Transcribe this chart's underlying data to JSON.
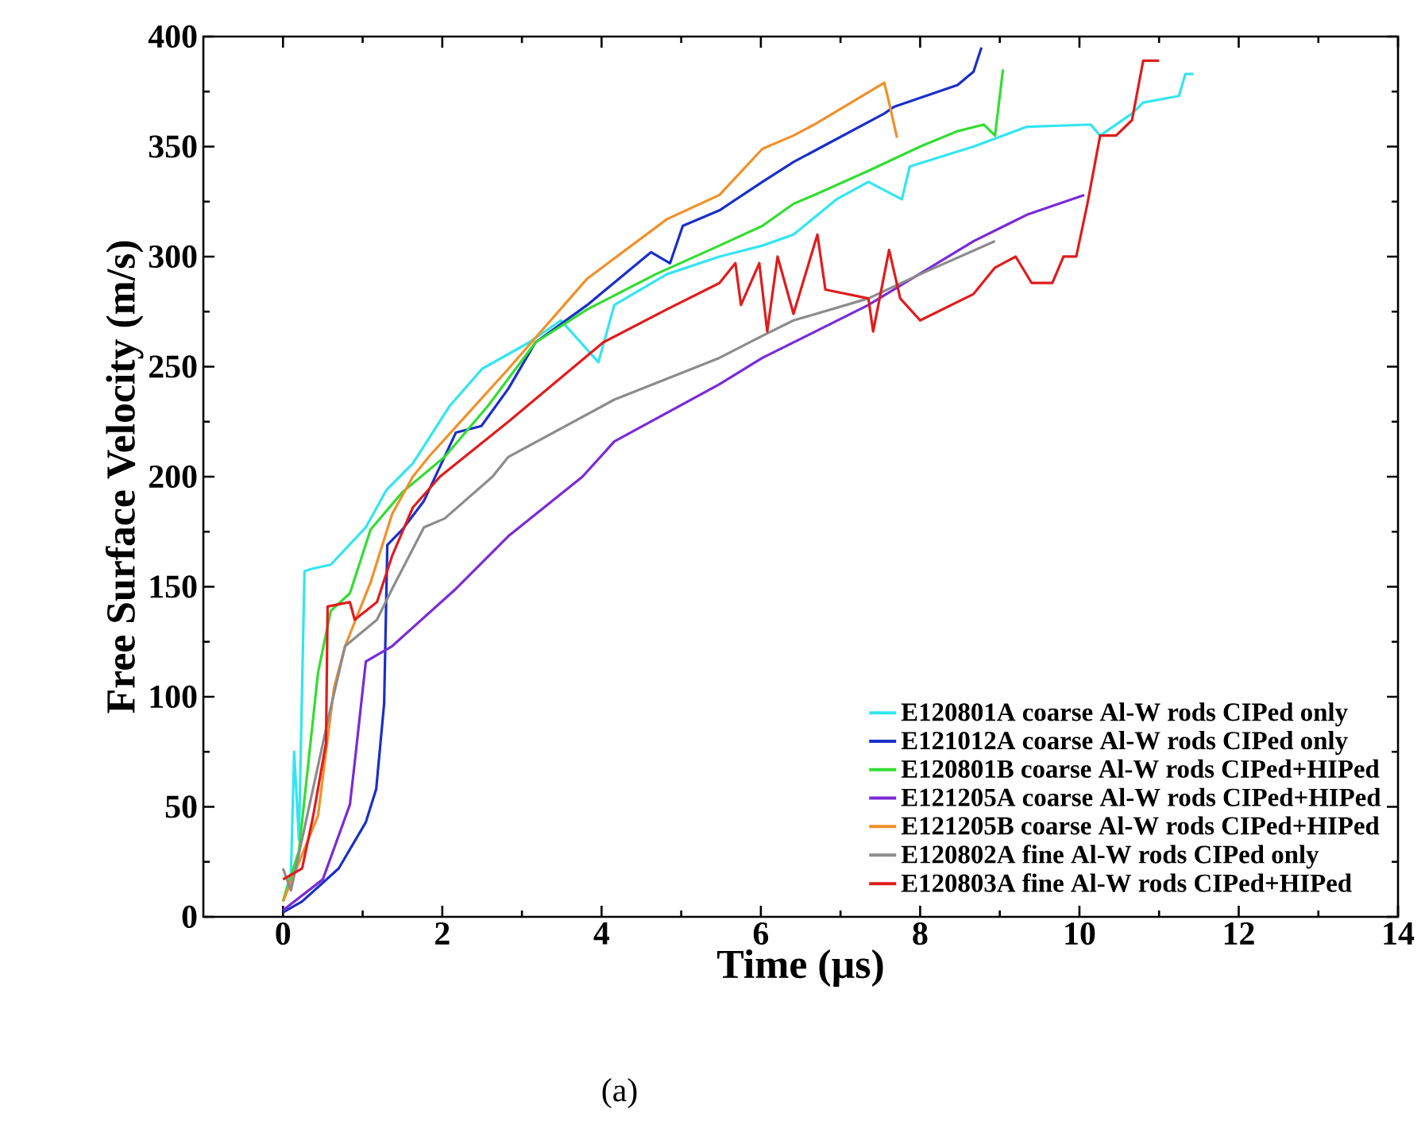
{
  "chart_data": {
    "type": "line",
    "xlabel": "Time (µs)",
    "ylabel": "Free Surface Velocity (m/s)",
    "xlim": [
      -1,
      14
    ],
    "ylim": [
      0,
      400
    ],
    "xticks": [
      0,
      2,
      4,
      6,
      8,
      10,
      12,
      14
    ],
    "yticks": [
      0,
      50,
      100,
      150,
      200,
      250,
      300,
      350,
      400
    ],
    "legend": "bottom right",
    "grid": false,
    "marker": "none",
    "line_style": "solid",
    "annotations": [
      "(a)"
    ],
    "series": [
      {
        "name": "E120801A coarse Al-W rods CIPed only",
        "color": "#33e5f0",
        "x": [
          0,
          0.1,
          0.14,
          0.2,
          0.27,
          0.35,
          0.6,
          1.04,
          1.3,
          1.63,
          2.09,
          2.5,
          3.09,
          3.49,
          3.96,
          4.16,
          4.82,
          5.48,
          6.02,
          6.41,
          6.95,
          7.35,
          7.77,
          7.87,
          8.67,
          9.34,
          10.14,
          10.26,
          10.66,
          10.8,
          11.25,
          11.33,
          11.43
        ],
        "values": [
          7,
          20,
          75,
          35,
          157,
          158,
          160,
          177,
          194,
          206,
          232,
          249,
          261,
          271,
          252,
          278,
          292,
          300,
          305,
          310,
          326,
          334,
          326,
          341,
          350,
          359,
          360,
          355,
          365,
          370,
          373,
          383,
          383
        ]
      },
      {
        "name": "E121012A coarse Al-W rods CIPed only",
        "color": "#1a2fc8",
        "x": [
          0,
          0.24,
          0.7,
          1.04,
          1.17,
          1.27,
          1.31,
          1.5,
          1.77,
          2.17,
          2.49,
          2.83,
          3.17,
          3.82,
          4.62,
          4.86,
          5.02,
          5.48,
          6.02,
          6.41,
          6.67,
          7.55,
          7.67,
          8.47,
          8.67,
          8.77
        ],
        "values": [
          2,
          7,
          22,
          43,
          58,
          97,
          169,
          176,
          189,
          220,
          223,
          240,
          261,
          278,
          302,
          297,
          314,
          321,
          334,
          343,
          348,
          365,
          368,
          378,
          384,
          395
        ]
      },
      {
        "name": "E120801B coarse Al-W rods CIPed+HIPed",
        "color": "#33dd33",
        "x": [
          0,
          0.2,
          0.44,
          0.6,
          0.84,
          1.1,
          1.5,
          2.03,
          2.57,
          3.17,
          3.82,
          4.68,
          5.48,
          6.02,
          6.41,
          6.67,
          7.35,
          8.0,
          8.47,
          8.8,
          8.94,
          9.04
        ],
        "values": [
          7,
          30,
          111,
          139,
          147,
          176,
          193,
          209,
          232,
          261,
          276,
          292,
          305,
          314,
          324,
          328,
          339,
          350,
          357,
          360,
          355,
          385
        ]
      },
      {
        "name": "E121205A coarse Al-W rods CIPed+HIPed",
        "color": "#7a2ad6",
        "x": [
          0,
          0.5,
          0.84,
          0.9,
          1.04,
          1.37,
          2.17,
          2.83,
          3.76,
          4.16,
          5.48,
          6.02,
          7.35,
          8.67,
          9.34,
          10.06
        ],
        "values": [
          3,
          17,
          51,
          70,
          116,
          123,
          149,
          173,
          200,
          216,
          242,
          254,
          278,
          307,
          319,
          328
        ]
      },
      {
        "name": "E121205B coarse Al-W rods CIPed+HIPed",
        "color": "#f0902a",
        "x": [
          0,
          0.44,
          0.64,
          0.78,
          1.1,
          1.37,
          1.63,
          1.83,
          2.83,
          3.82,
          4.82,
          5.48,
          6.02,
          6.41,
          6.67,
          7.55,
          7.61,
          7.71
        ],
        "values": [
          7,
          46,
          104,
          123,
          152,
          183,
          200,
          209,
          249,
          290,
          317,
          328,
          349,
          355,
          360,
          379,
          370,
          354
        ]
      },
      {
        "name": "E120802A fine Al-W rods CIPed only",
        "color": "#8c8c8c",
        "x": [
          0,
          0.1,
          0.58,
          0.78,
          1.18,
          1.37,
          1.77,
          2.03,
          2.63,
          2.83,
          4.16,
          5.48,
          6.02,
          6.41,
          7.35,
          8.0,
          8.94
        ],
        "values": [
          22,
          12,
          92,
          123,
          135,
          149,
          177,
          181,
          200,
          209,
          235,
          254,
          264,
          271,
          281,
          292,
          307
        ]
      },
      {
        "name": "E120803A fine Al-W rods CIPed+HIPed",
        "color": "#e01c1c",
        "x": [
          0,
          0.24,
          0.38,
          0.54,
          0.56,
          0.84,
          0.9,
          1.18,
          1.37,
          1.63,
          1.97,
          2.83,
          4.02,
          4.82,
          5.48,
          5.68,
          5.75,
          5.98,
          6.08,
          6.21,
          6.41,
          6.71,
          6.81,
          7.35,
          7.41,
          7.61,
          7.75,
          8.0,
          8.67,
          8.94,
          9.2,
          9.4,
          9.66,
          9.8,
          9.96,
          10.1,
          10.26,
          10.46,
          10.66,
          10.8,
          11.0
        ],
        "values": [
          17,
          22,
          46,
          79,
          141,
          143,
          135,
          143,
          164,
          186,
          200,
          225,
          261,
          276,
          288,
          297,
          278,
          297,
          266,
          300,
          274,
          310,
          285,
          281,
          266,
          303,
          281,
          271,
          283,
          295,
          300,
          288,
          288,
          300,
          300,
          324,
          355,
          355,
          362,
          389,
          389
        ]
      }
    ]
  }
}
